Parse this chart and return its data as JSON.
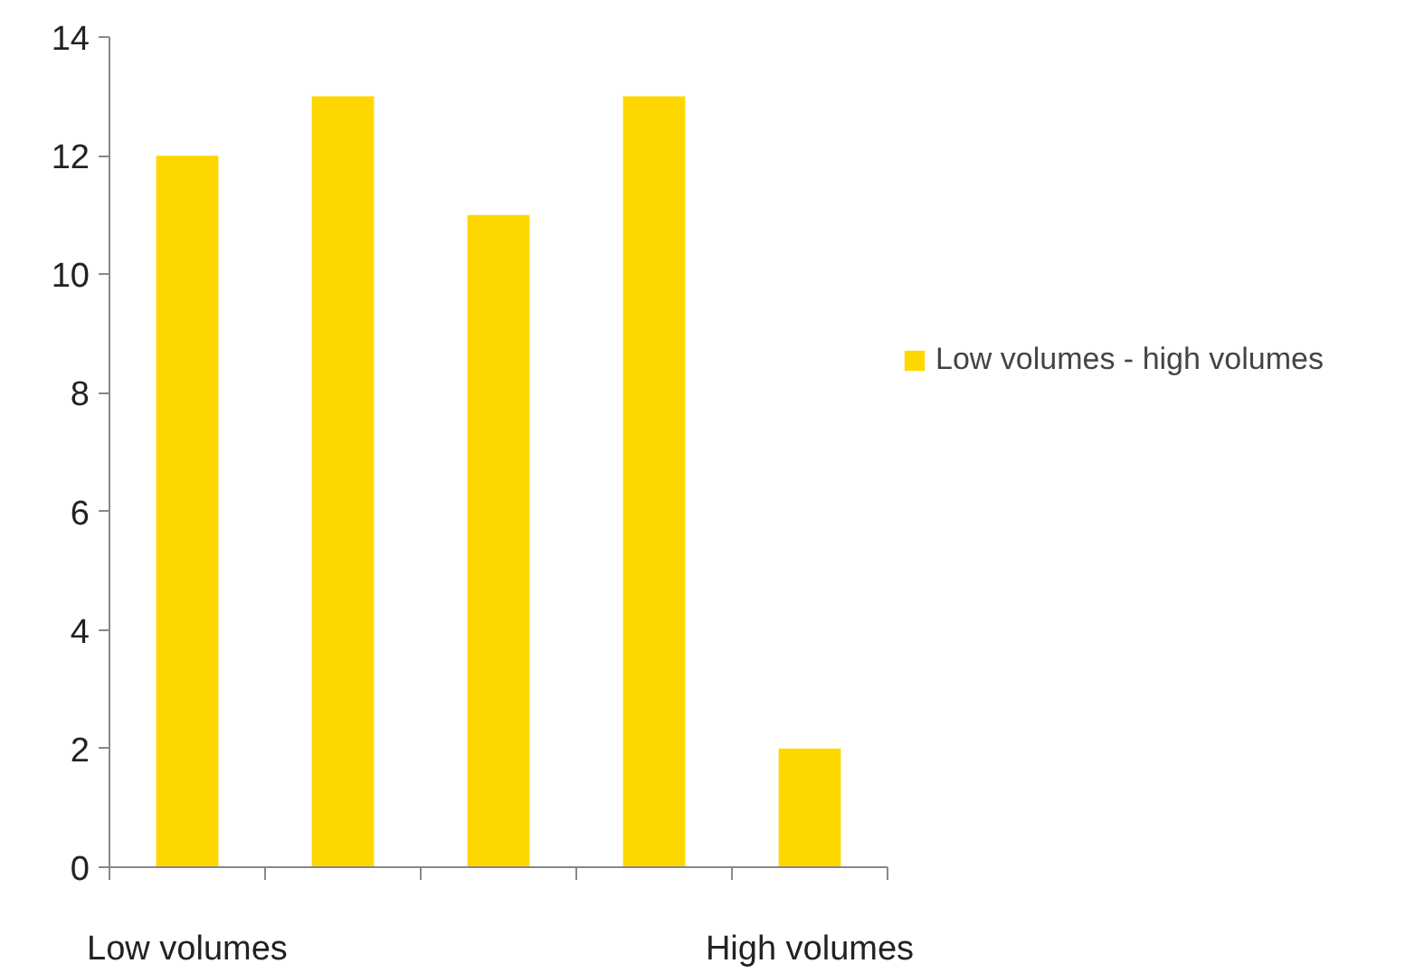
{
  "chart_data": {
    "type": "bar",
    "categories": [
      "Low volumes",
      null,
      null,
      null,
      "High volumes"
    ],
    "series": [
      {
        "name": "Low volumes - high volumes",
        "color": "#ffd700",
        "values": [
          12,
          13,
          11,
          13,
          2
        ]
      }
    ],
    "ylim": [
      0,
      14
    ],
    "yticks": [
      0,
      2,
      4,
      6,
      8,
      10,
      12,
      14
    ],
    "grid": false,
    "legend": "right"
  }
}
